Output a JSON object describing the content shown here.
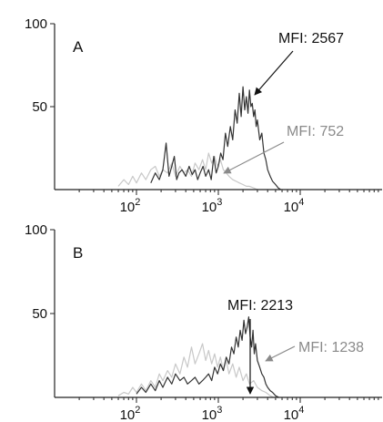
{
  "chart_data": [
    {
      "type": "histogram",
      "panel_label": "A",
      "x_scale": "log",
      "xlim": [
        10,
        100000
      ],
      "ylim": [
        0,
        100
      ],
      "x_ticks": [
        100,
        1000,
        10000
      ],
      "x_tick_labels": [
        {
          "base": "10",
          "exp": "2"
        },
        {
          "base": "10",
          "exp": "3"
        },
        {
          "base": "10",
          "exp": "4"
        }
      ],
      "y_ticks": [
        50,
        100
      ],
      "y_tick_labels": [
        "50",
        "100"
      ],
      "series": [
        {
          "color": "#333333",
          "x": [
            150,
            170,
            190,
            210,
            230,
            250,
            270,
            290,
            310,
            330,
            360,
            400,
            440,
            480,
            520,
            560,
            600,
            650,
            700,
            760,
            820,
            880,
            940,
            1000,
            1070,
            1140,
            1220,
            1300,
            1400,
            1500,
            1600,
            1700,
            1800,
            1900,
            2000,
            2100,
            2200,
            2300,
            2400,
            2500,
            2600,
            2700,
            2800,
            2900,
            3000,
            3200,
            3400,
            3600,
            3800,
            4000,
            4300,
            4600,
            5000,
            5400,
            5800
          ],
          "values": [
            4,
            10,
            6,
            12,
            28,
            8,
            14,
            20,
            6,
            10,
            12,
            8,
            14,
            9,
            12,
            6,
            10,
            14,
            8,
            12,
            6,
            20,
            10,
            14,
            22,
            18,
            34,
            26,
            38,
            30,
            48,
            40,
            58,
            44,
            62,
            48,
            56,
            46,
            60,
            50,
            52,
            44,
            48,
            38,
            42,
            30,
            34,
            22,
            18,
            12,
            8,
            5,
            3,
            1,
            0
          ]
        },
        {
          "color": "#c8c8c8",
          "x": [
            60,
            70,
            80,
            90,
            100,
            115,
            130,
            150,
            170,
            190,
            210,
            240,
            270,
            300,
            340,
            380,
            420,
            470,
            520,
            580,
            640,
            700,
            760,
            830,
            900,
            980,
            1060,
            1150,
            1250,
            1350,
            1500,
            1650,
            1800,
            2000,
            2200,
            2400,
            2700,
            3000
          ],
          "values": [
            2,
            6,
            3,
            8,
            4,
            10,
            6,
            12,
            14,
            8,
            12,
            10,
            16,
            8,
            14,
            10,
            12,
            8,
            16,
            12,
            18,
            12,
            22,
            16,
            20,
            14,
            18,
            12,
            10,
            8,
            6,
            5,
            4,
            3,
            2,
            2,
            1,
            0
          ]
        }
      ],
      "annotations": [
        {
          "text": "MFI: 2567",
          "color": "#111111",
          "points_to_x": 2500,
          "points_to_y": 55
        },
        {
          "text": "MFI: 752",
          "color": "#8a8a8a",
          "points_to_x": 800,
          "points_to_y": 12
        }
      ]
    },
    {
      "type": "histogram",
      "panel_label": "B",
      "x_scale": "log",
      "xlim": [
        10,
        100000
      ],
      "ylim": [
        0,
        100
      ],
      "x_ticks": [
        100,
        1000,
        10000
      ],
      "x_tick_labels": [
        {
          "base": "10",
          "exp": "2"
        },
        {
          "base": "10",
          "exp": "3"
        },
        {
          "base": "10",
          "exp": "4"
        }
      ],
      "y_ticks": [
        50,
        100
      ],
      "y_tick_labels": [
        "50",
        "100"
      ],
      "series": [
        {
          "color": "#333333",
          "x": [
            100,
            115,
            130,
            150,
            170,
            190,
            210,
            240,
            270,
            300,
            340,
            380,
            420,
            470,
            520,
            580,
            640,
            700,
            760,
            830,
            900,
            980,
            1060,
            1150,
            1250,
            1350,
            1450,
            1550,
            1650,
            1750,
            1850,
            1950,
            2050,
            2150,
            2250,
            2350,
            2450,
            2550,
            2650,
            2750,
            2850,
            3000,
            3200,
            3400,
            3600,
            3800,
            4000,
            4300,
            4600,
            5000,
            5500
          ],
          "values": [
            2,
            6,
            3,
            8,
            4,
            10,
            6,
            12,
            8,
            14,
            10,
            12,
            8,
            10,
            12,
            8,
            10,
            12,
            14,
            10,
            18,
            14,
            20,
            16,
            24,
            20,
            30,
            26,
            36,
            30,
            40,
            34,
            46,
            38,
            42,
            48,
            36,
            30,
            40,
            26,
            32,
            22,
            18,
            14,
            12,
            8,
            6,
            4,
            3,
            1,
            0
          ]
        },
        {
          "color": "#c8c8c8",
          "x": [
            60,
            70,
            80,
            90,
            100,
            115,
            130,
            150,
            170,
            190,
            210,
            240,
            270,
            300,
            340,
            380,
            420,
            470,
            520,
            580,
            640,
            700,
            760,
            830,
            900,
            980,
            1060,
            1150,
            1250,
            1350,
            1500,
            1650,
            1800,
            2000,
            2200,
            2400,
            2700,
            3000,
            3400,
            3800,
            4300,
            4800
          ],
          "values": [
            1,
            3,
            2,
            6,
            3,
            8,
            4,
            10,
            6,
            14,
            10,
            16,
            12,
            20,
            14,
            24,
            18,
            30,
            20,
            26,
            32,
            22,
            28,
            20,
            26,
            18,
            24,
            16,
            22,
            14,
            20,
            12,
            18,
            10,
            14,
            8,
            10,
            6,
            4,
            3,
            1,
            0
          ]
        }
      ],
      "annotations": [
        {
          "text": "MFI: 2213",
          "color": "#111111",
          "points_to_x": 2213,
          "points_to_y": 3
        },
        {
          "text": "MFI: 1238",
          "color": "#8a8a8a",
          "points_to_x": 1700,
          "points_to_y": 25
        }
      ]
    }
  ]
}
